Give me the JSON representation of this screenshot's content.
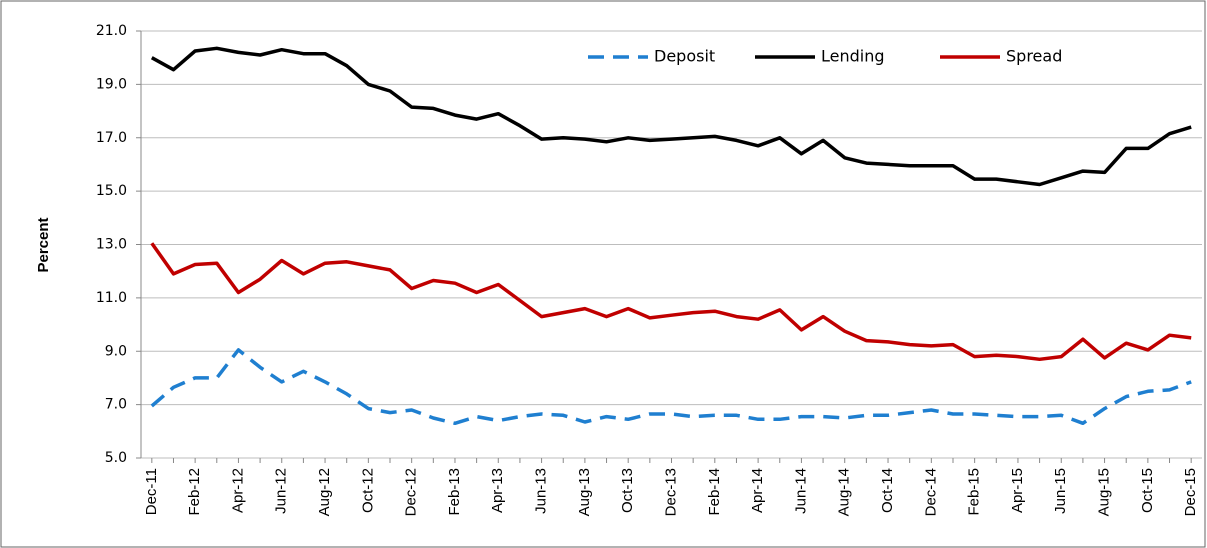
{
  "chart_data": {
    "type": "line",
    "y_label": "Percent",
    "categories": [
      "Dec-11",
      null,
      "Feb-12",
      null,
      "Apr-12",
      null,
      "Jun-12",
      null,
      "Aug-12",
      null,
      "Oct-12",
      null,
      "Dec-12",
      null,
      "Feb-13",
      null,
      "Apr-13",
      null,
      "Jun-13",
      null,
      "Aug-13",
      null,
      "Oct-13",
      null,
      "Dec-13",
      null,
      "Feb-14",
      null,
      "Apr-14",
      null,
      "Jun-14",
      null,
      "Aug-14",
      null,
      "Oct-14",
      null,
      "Dec-14",
      null,
      "Feb-15",
      null,
      "Apr-15",
      null,
      "Jun-15",
      null,
      "Aug-15",
      null,
      "Oct-15",
      null,
      "Dec-15"
    ],
    "series": [
      {
        "name": "Deposit",
        "color": "#1f7fd0",
        "style": "dashed",
        "values": [
          6.95,
          7.65,
          8.0,
          8.0,
          9.05,
          8.4,
          7.85,
          8.25,
          7.85,
          7.4,
          6.85,
          6.7,
          6.8,
          6.5,
          6.3,
          6.55,
          6.4,
          6.55,
          6.65,
          6.6,
          6.35,
          6.55,
          6.45,
          6.65,
          6.65,
          6.55,
          6.6,
          6.6,
          6.45,
          6.45,
          6.55,
          6.55,
          6.5,
          6.6,
          6.6,
          6.7,
          6.8,
          6.65,
          6.65,
          6.6,
          6.55,
          6.55,
          6.6,
          6.3,
          6.85,
          7.3,
          7.5,
          7.55,
          7.85
        ]
      },
      {
        "name": "Lending",
        "color": "#000000",
        "style": "solid",
        "values": [
          20.0,
          19.55,
          20.25,
          20.35,
          20.2,
          20.1,
          20.3,
          20.15,
          20.15,
          19.7,
          19.0,
          18.75,
          18.15,
          18.1,
          17.85,
          17.7,
          17.9,
          17.45,
          16.95,
          17.0,
          16.95,
          16.85,
          17.0,
          16.9,
          16.95,
          17.0,
          17.05,
          16.9,
          16.7,
          17.0,
          16.4,
          16.9,
          16.25,
          16.05,
          16.0,
          15.95,
          15.95,
          15.95,
          15.45,
          15.45,
          15.35,
          15.25,
          15.5,
          15.75,
          15.7,
          16.6,
          16.6,
          17.15,
          17.4
        ]
      },
      {
        "name": "Spread",
        "color": "#c00000",
        "style": "solid",
        "values": [
          13.05,
          11.9,
          12.25,
          12.3,
          11.2,
          11.7,
          12.4,
          11.9,
          12.3,
          12.35,
          12.2,
          12.05,
          11.35,
          11.65,
          11.55,
          11.2,
          11.5,
          10.9,
          10.3,
          10.45,
          10.6,
          10.3,
          10.6,
          10.25,
          10.35,
          10.45,
          10.5,
          10.3,
          10.2,
          10.55,
          9.8,
          10.3,
          9.75,
          9.4,
          9.35,
          9.25,
          9.2,
          9.25,
          8.8,
          8.85,
          8.8,
          8.7,
          8.8,
          9.45,
          8.75,
          9.3,
          9.05,
          9.6,
          9.5
        ]
      }
    ],
    "ylim": [
      5,
      21
    ],
    "yticks": [
      {
        "value": 5,
        "label": "5.0"
      },
      {
        "value": 7,
        "label": "7.0"
      },
      {
        "value": 9,
        "label": "9.0"
      },
      {
        "value": 11,
        "label": "11.0"
      },
      {
        "value": 13,
        "label": "13.0"
      },
      {
        "value": 15,
        "label": "15.0"
      },
      {
        "value": 17,
        "label": "17.0"
      },
      {
        "value": 19,
        "label": "19.0"
      },
      {
        "value": 21,
        "label": "21.0"
      }
    ],
    "grid": true,
    "legend": "top-right"
  }
}
